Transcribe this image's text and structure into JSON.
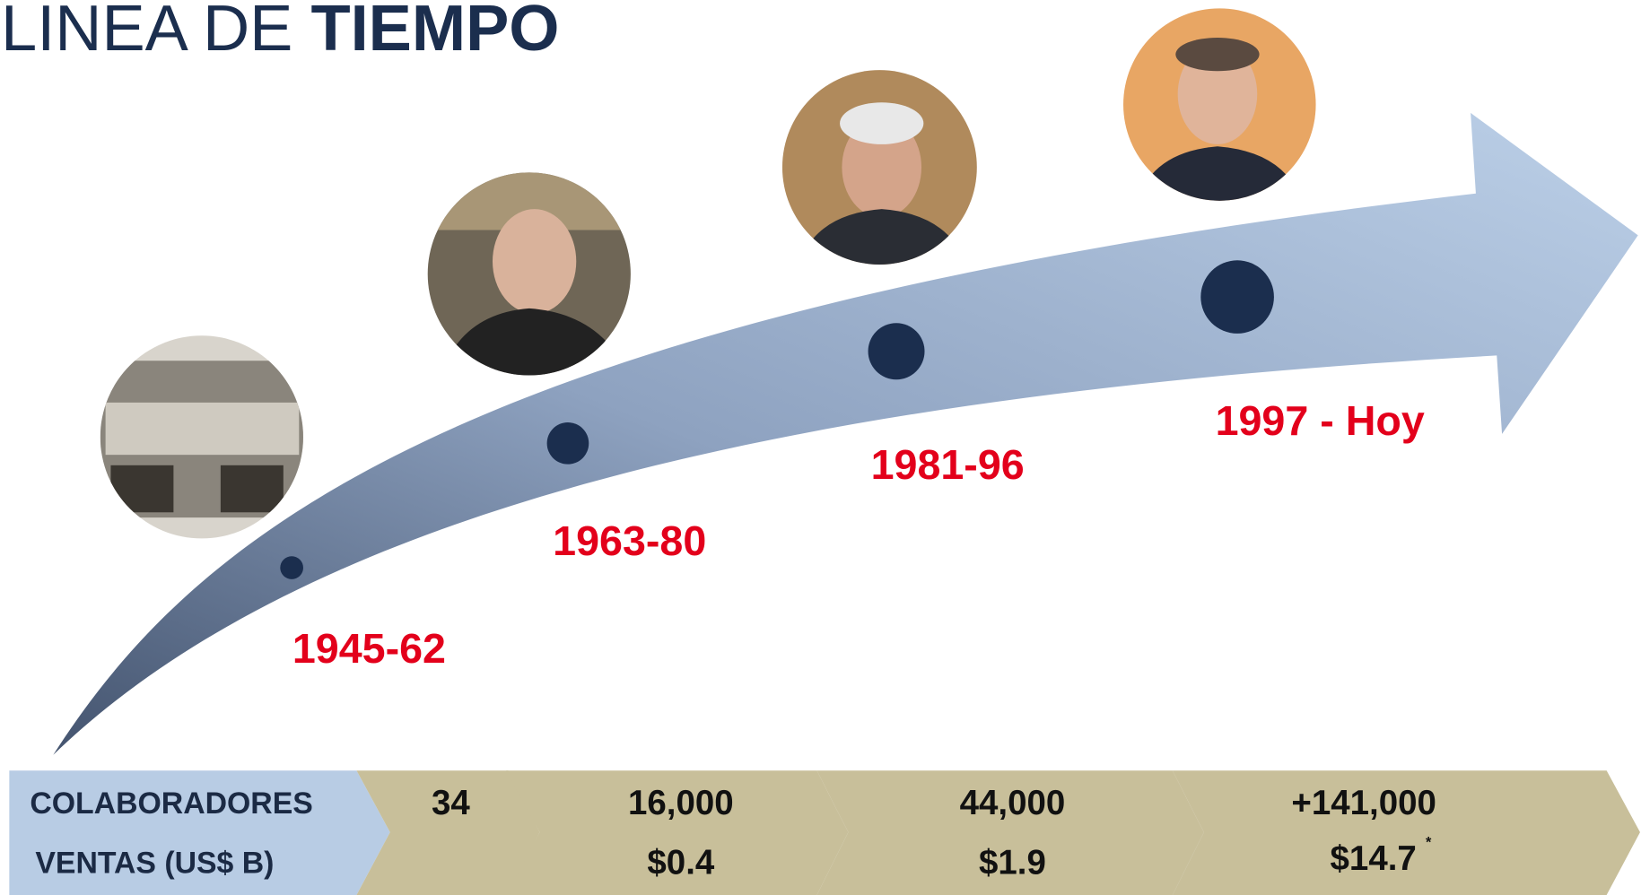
{
  "title": {
    "light": "LINEA DE",
    "bold": "TIEMPO"
  },
  "periods": [
    "1945-62",
    "1963-80",
    "1981-96",
    "1997 - Hoy"
  ],
  "metrics": {
    "row_labels": [
      "COLABORADORES",
      "VENTAS (US$ B)"
    ],
    "collaborators": [
      "34",
      "16,000",
      "44,000",
      "+141,000"
    ],
    "sales": [
      "$0.4",
      "$1.9",
      "$14.7"
    ],
    "sales_note": "*"
  }
}
